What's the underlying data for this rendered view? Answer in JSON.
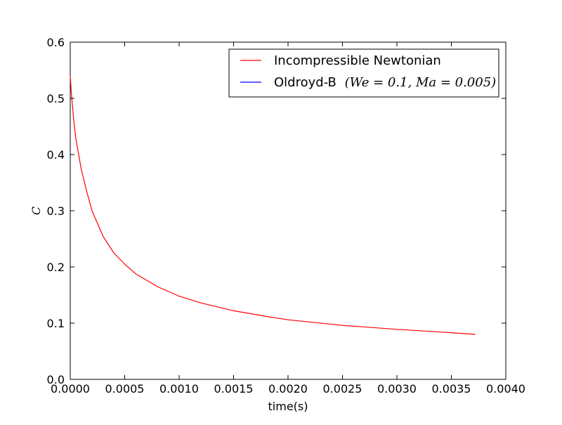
{
  "chart_data": {
    "type": "line",
    "title": "",
    "xlabel": "time(s)",
    "ylabel": "C",
    "xlim": [
      0,
      0.004
    ],
    "ylim": [
      0,
      0.6
    ],
    "xticks": [
      "0.0000",
      "0.0005",
      "0.0010",
      "0.0015",
      "0.0020",
      "0.0025",
      "0.0030",
      "0.0035",
      "0.0040"
    ],
    "yticks": [
      "0.0",
      "0.1",
      "0.2",
      "0.3",
      "0.4",
      "0.5",
      "0.6"
    ],
    "grid": false,
    "legend_position": "top-right",
    "legend": [
      {
        "text": "Incompressible Newtonian",
        "color": "#ff0000"
      },
      {
        "text": "Oldroyd-B",
        "math": "(We = 0.1, Ma = 0.005)",
        "color": "#0000ff"
      }
    ],
    "series": [
      {
        "name": "Incompressible Newtonian",
        "color": "#ff0000",
        "x": [
          0.0,
          1e-05,
          3e-05,
          5e-05,
          0.0001,
          0.00015,
          0.0002,
          0.0003,
          0.0004,
          0.0005,
          0.0006,
          0.0008,
          0.001,
          0.0012,
          0.0015,
          0.0018,
          0.002,
          0.0025,
          0.003,
          0.0035,
          0.00372
        ],
        "y": [
          0.54,
          0.51,
          0.465,
          0.43,
          0.375,
          0.335,
          0.3,
          0.255,
          0.225,
          0.205,
          0.188,
          0.165,
          0.148,
          0.136,
          0.122,
          0.112,
          0.106,
          0.096,
          0.089,
          0.083,
          0.08
        ]
      },
      {
        "name": "Oldroyd-B",
        "color": "#0000ff",
        "x": [],
        "y": []
      }
    ]
  }
}
